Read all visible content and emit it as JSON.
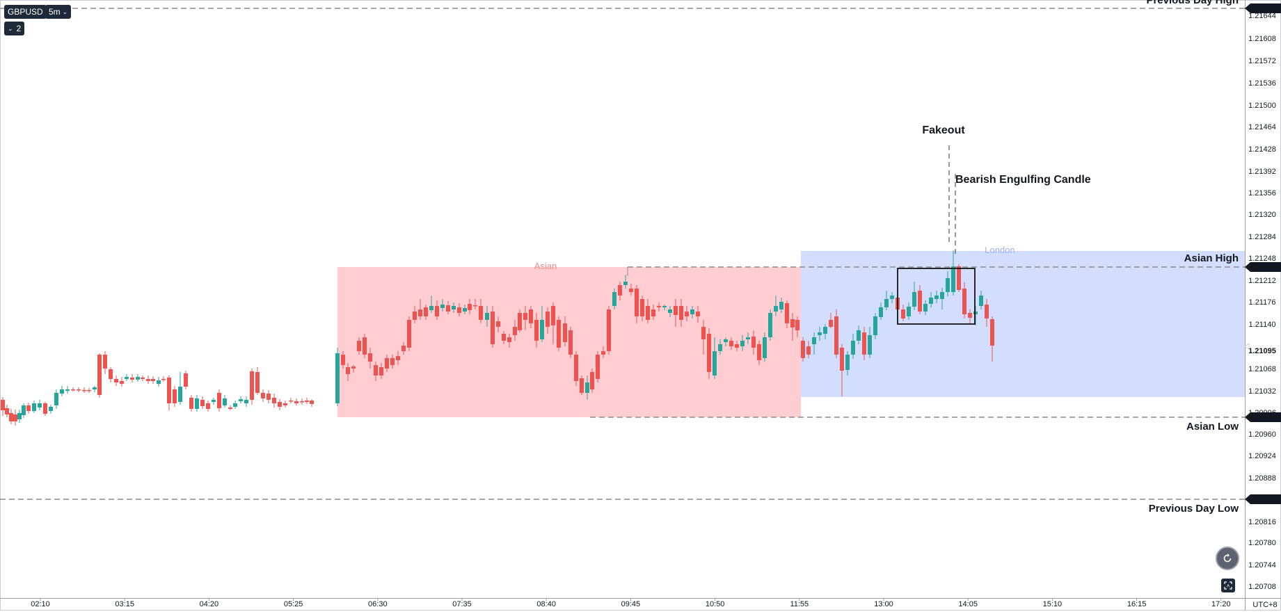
{
  "toolbar": {
    "symbol": "GBPUSD",
    "interval": "5m",
    "indicators_count": "2"
  },
  "time_axis": {
    "labels": [
      "02:10",
      "03:15",
      "04:20",
      "05:25",
      "06:30",
      "07:35",
      "08:40",
      "09:45",
      "10:50",
      "11:55",
      "13:00",
      "14:05",
      "15:10",
      "16:15",
      "17:20"
    ],
    "timezone": "UTC+8"
  },
  "price_axis": {
    "labels": [
      "1.21644",
      "1.21608",
      "1.21572",
      "1.21536",
      "1.21500",
      "1.21464",
      "1.21428",
      "1.21392",
      "1.21356",
      "1.21320",
      "1.21284",
      "1.21248",
      "1.21212",
      "1.21176",
      "1.21140",
      "1.21095",
      "1.21068",
      "1.21032",
      "1.20996",
      "1.20960",
      "1.20924",
      "1.20888",
      "1.20816",
      "1.20780",
      "1.20744",
      "1.20708"
    ],
    "current_price": "1.21095"
  },
  "annotations": {
    "previous_day_high": "Previous Day High",
    "previous_day_low": "Previous Day Low",
    "asian_high": "Asian High",
    "asian_low": "Asian Low",
    "fakeout": "Fakeout",
    "bearish_engulfing": "Bearish Engulfing Candle",
    "asian_session": "Asian",
    "london_session": "London"
  },
  "colors": {
    "bull": "#26a69a",
    "bear": "#ef5350",
    "asian_zone": "#ffcdd2",
    "london_zone": "#d3defe",
    "asian_label": "#f08a8a",
    "london_label": "#9cb2f2",
    "axis_text": "#131722",
    "dashed_line": "#8c8c8c"
  },
  "icons": {
    "symbol_menu": "chevron-down-icon",
    "indicators_toggle": "chevron-down-icon",
    "replay_button": "replay-icon",
    "auto_scale": "auto-scale-icon"
  }
}
